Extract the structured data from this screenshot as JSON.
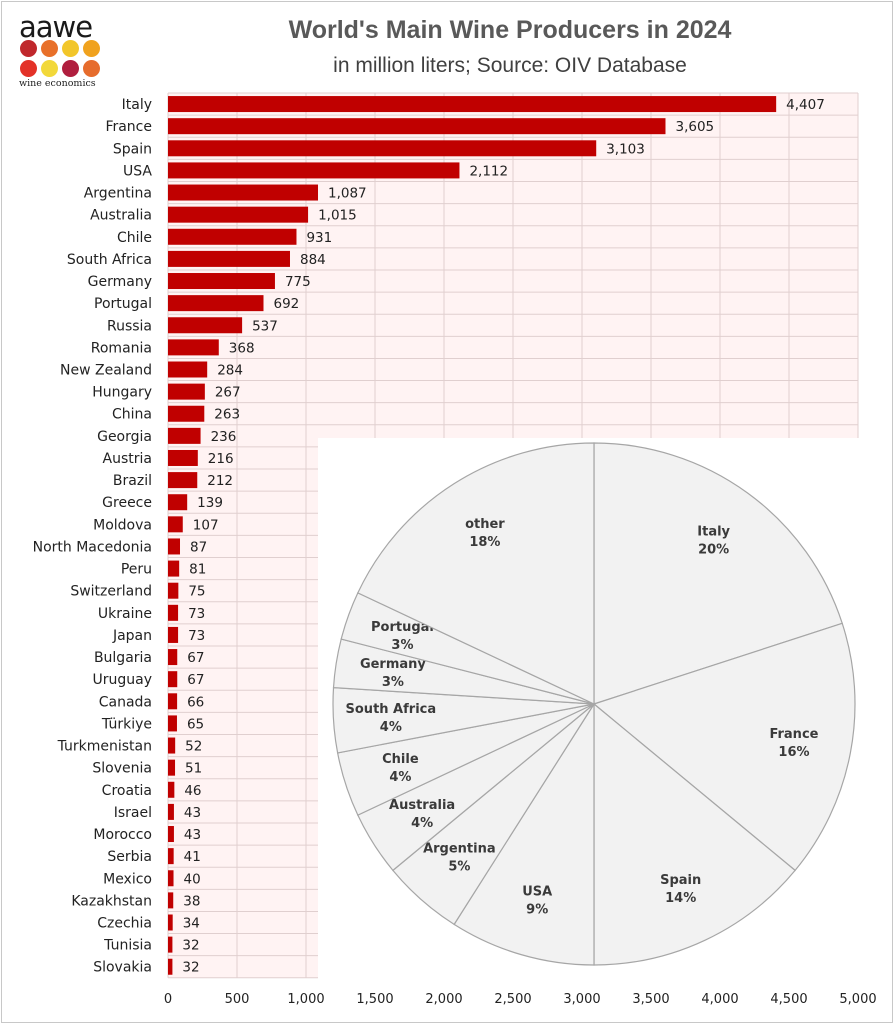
{
  "logo": {
    "word": "aawe",
    "subtitle": "wine economics",
    "dot_colors": [
      "#c0282c",
      "#e8702a",
      "#f2c62a",
      "#f0a21e",
      "#e33228",
      "#f2d83a",
      "#b01e3e",
      "#e66c2c"
    ]
  },
  "colors": {
    "bar": "#c00000",
    "plot_bg": "#fff3f3",
    "grid": "#e0cfcf",
    "pie_fill": "#f2f2f2",
    "pie_line": "#a6a6a6"
  },
  "chart_data": [
    {
      "type": "bar",
      "orientation": "horizontal",
      "title": "World's Main Wine Producers in 2024",
      "subtitle": "in million liters; Source: OIV Database",
      "categories": [
        "Italy",
        "France",
        "Spain",
        "USA",
        "Argentina",
        "Australia",
        "Chile",
        "South Africa",
        "Germany",
        "Portugal",
        "Russia",
        "Romania",
        "New Zealand",
        "Hungary",
        "China",
        "Georgia",
        "Austria",
        "Brazil",
        "Greece",
        "Moldova",
        "North Macedonia",
        "Peru",
        "Switzerland",
        "Ukraine",
        "Japan",
        "Bulgaria",
        "Uruguay",
        "Canada",
        "Türkiye",
        "Turkmenistan",
        "Slovenia",
        "Croatia",
        "Israel",
        "Morocco",
        "Serbia",
        "Mexico",
        "Kazakhstan",
        "Czechia",
        "Tunisia",
        "Slovakia"
      ],
      "values": [
        4407,
        3605,
        3103,
        2112,
        1087,
        1015,
        931,
        884,
        775,
        692,
        537,
        368,
        284,
        267,
        263,
        236,
        216,
        212,
        139,
        107,
        87,
        81,
        75,
        73,
        73,
        67,
        67,
        66,
        65,
        52,
        51,
        46,
        43,
        43,
        41,
        40,
        38,
        34,
        32,
        32
      ],
      "value_labels": [
        "4,407",
        "3,605",
        "3,103",
        "2,112",
        "1,087",
        "1,015",
        "931",
        "884",
        "775",
        "692",
        "537",
        "368",
        "284",
        "267",
        "263",
        "236",
        "216",
        "212",
        "139",
        "107",
        "87",
        "81",
        "75",
        "73",
        "73",
        "67",
        "67",
        "66",
        "65",
        "52",
        "51",
        "46",
        "43",
        "43",
        "41",
        "40",
        "38",
        "34",
        "32",
        "32"
      ],
      "xlim": [
        0,
        5000
      ],
      "x_ticks": [
        0,
        500,
        1000,
        1500,
        2000,
        2500,
        3000,
        3500,
        4000,
        4500,
        5000
      ],
      "x_tick_labels": [
        "0",
        "500",
        "1,000",
        "1,500",
        "2,000",
        "2,500",
        "3,000",
        "3,500",
        "4,000",
        "4,500",
        "5,000"
      ],
      "grid": true,
      "data_labels": true
    },
    {
      "type": "pie",
      "slices": [
        {
          "label": "Italy",
          "percent_label": "20%",
          "value": 20
        },
        {
          "label": "France",
          "percent_label": "16%",
          "value": 16
        },
        {
          "label": "Spain",
          "percent_label": "14%",
          "value": 14
        },
        {
          "label": "USA",
          "percent_label": "9%",
          "value": 9
        },
        {
          "label": "Argentina",
          "percent_label": "5%",
          "value": 5
        },
        {
          "label": "Australia",
          "percent_label": "4%",
          "value": 4
        },
        {
          "label": "Chile",
          "percent_label": "4%",
          "value": 4
        },
        {
          "label": "South Africa",
          "percent_label": "4%",
          "value": 4
        },
        {
          "label": "Germany",
          "percent_label": "3%",
          "value": 3
        },
        {
          "label": "Portugal",
          "percent_label": "3%",
          "value": 3
        },
        {
          "label": "other",
          "percent_label": "18%",
          "value": 18
        }
      ],
      "start": "12 o'clock",
      "direction": "clockwise"
    }
  ]
}
